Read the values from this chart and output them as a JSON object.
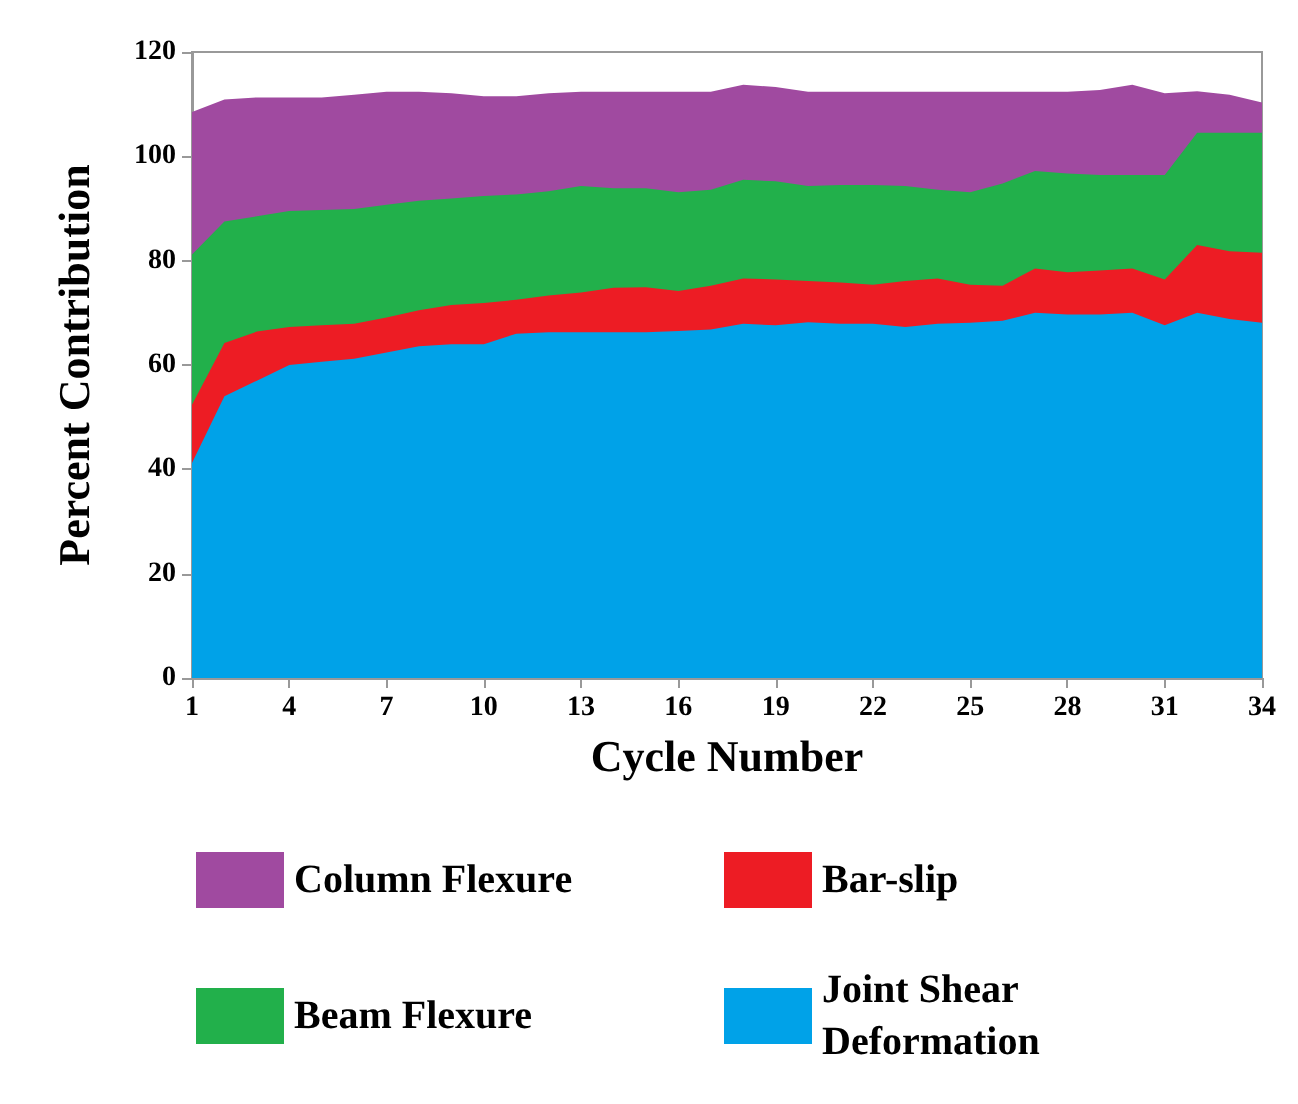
{
  "chart_data": {
    "type": "area",
    "stacked": true,
    "xlabel": "Cycle Number",
    "ylabel": "Percent Contribution",
    "x": [
      1,
      2,
      3,
      4,
      5,
      6,
      7,
      8,
      9,
      10,
      11,
      12,
      13,
      14,
      15,
      16,
      17,
      18,
      19,
      20,
      21,
      22,
      23,
      24,
      25,
      26,
      27,
      28,
      29,
      30,
      31,
      32,
      33,
      34
    ],
    "xlim": [
      1,
      34
    ],
    "xticks": [
      1,
      4,
      7,
      10,
      13,
      16,
      19,
      22,
      25,
      28,
      31,
      34
    ],
    "ylim": [
      0,
      120
    ],
    "yticks": [
      0,
      20,
      40,
      60,
      80,
      100,
      120
    ],
    "grid": false,
    "legend": "bottom",
    "marker": "none",
    "series": [
      {
        "name": "Joint Shear Deformation",
        "color": "#00a2e8",
        "values": [
          41.2,
          54,
          57,
          60,
          60.6,
          61.2,
          62.4,
          63.6,
          64,
          64,
          66,
          66.3,
          66.3,
          66.3,
          66.3,
          66.5,
          66.8,
          67.9,
          67.6,
          68.2,
          67.9,
          67.9,
          67.3,
          67.9,
          68.1,
          68.5,
          70,
          69.7,
          69.7,
          70,
          67.6,
          70,
          68.8,
          68.1
        ]
      },
      {
        "name": "Bar-slip",
        "color": "#ed1c24",
        "values": [
          11.2,
          10.2,
          9.4,
          7.3,
          7,
          6.7,
          6.7,
          6.9,
          7.5,
          7.9,
          6.5,
          7,
          7.6,
          8.5,
          8.6,
          7.7,
          8.4,
          8.7,
          8.8,
          7.9,
          7.9,
          7.5,
          8.8,
          8.7,
          7.3,
          6.7,
          8.5,
          8.1,
          8.4,
          8.5,
          8.8,
          13,
          13,
          13.4
        ]
      },
      {
        "name": "Beam Flexure",
        "color": "#22b04b",
        "values": [
          28.8,
          23.3,
          22.1,
          22.2,
          22.1,
          22,
          21.6,
          21,
          20.4,
          20.5,
          20.2,
          20,
          20.4,
          19.1,
          19,
          18.9,
          18.4,
          18.9,
          18.8,
          18.2,
          18.7,
          19.1,
          18.2,
          17,
          17.7,
          19.6,
          18.7,
          18.9,
          18.3,
          17.9,
          20,
          21.5,
          22.7,
          23
        ]
      },
      {
        "name": "Column Flexure",
        "color": "#a04aa0",
        "values": [
          27.3,
          23.4,
          22.8,
          21.8,
          21.6,
          21.9,
          21.7,
          20.9,
          20.2,
          19.1,
          18.8,
          18.8,
          18.1,
          18.5,
          18.5,
          19.3,
          18.8,
          18.2,
          18.1,
          18.1,
          17.9,
          17.9,
          18.1,
          18.8,
          19.3,
          17.6,
          15.2,
          15.7,
          16.3,
          17.3,
          15.7,
          8,
          7.3,
          5.8
        ]
      }
    ]
  }
}
